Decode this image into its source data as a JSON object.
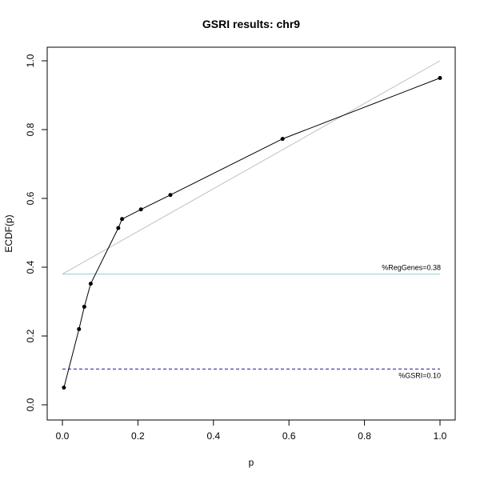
{
  "chart_data": {
    "type": "line",
    "title": "GSRI results: chr9",
    "xlabel": "p",
    "ylabel": "ECDF(p)",
    "xlim": [
      0,
      1
    ],
    "ylim": [
      0,
      1
    ],
    "xticks": [
      "0.0",
      "0.2",
      "0.4",
      "0.6",
      "0.8",
      "1.0"
    ],
    "yticks": [
      "0.0",
      "0.2",
      "0.4",
      "0.6",
      "0.8",
      "1.0"
    ],
    "grid": false,
    "series": [
      {
        "style": "points-and-line",
        "color": "#000000",
        "x": [
          0.004,
          0.044,
          0.058,
          0.075,
          0.148,
          0.158,
          0.208,
          0.286,
          0.583,
          1.0
        ],
        "y": [
          0.05,
          0.22,
          0.285,
          0.352,
          0.514,
          0.54,
          0.568,
          0.61,
          0.773,
          0.95
        ]
      }
    ],
    "reference_lines": [
      {
        "kind": "segment",
        "color": "#c0c0c0",
        "x": [
          0.0,
          1.0
        ],
        "y": [
          0.38,
          1.0
        ]
      },
      {
        "kind": "hline",
        "color": "#8ecfd6",
        "dash": "solid",
        "y": 0.38,
        "x_range": [
          0.0,
          1.0
        ],
        "label": "%RegGenes=0.38"
      },
      {
        "kind": "hline",
        "color": "#1a1a8c",
        "dash": "dashed",
        "y": 0.104,
        "x_range": [
          0.0,
          1.0
        ],
        "label": "%GSRI=0.10"
      }
    ]
  }
}
